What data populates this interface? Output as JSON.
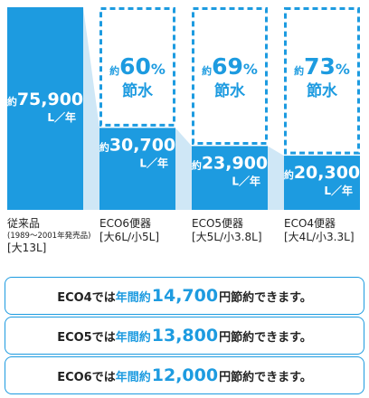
{
  "colors": {
    "accent": "#1d9be0",
    "connector": "#cfe7f6",
    "text": "#222222",
    "white": "#ffffff"
  },
  "chart_data": {
    "type": "bar",
    "unit_label": "L／年",
    "value_prefix": "約",
    "categories": [
      {
        "name": "従来品",
        "sub": "(1989～2001年発売品)",
        "spec": "[大13L]",
        "value": 75900,
        "value_label": "75,900",
        "saving_pct": null
      },
      {
        "name": "ECO6便器",
        "sub": "",
        "spec": "[大6L/小5L]",
        "value": 30700,
        "value_label": "30,700",
        "saving_pct": 60
      },
      {
        "name": "ECO5便器",
        "sub": "",
        "spec": "[大5L/小3.8L]",
        "value": 23900,
        "value_label": "23,900",
        "saving_pct": 69
      },
      {
        "name": "ECO4便器",
        "sub": "",
        "spec": "[大4L/小3.3L]",
        "value": 20300,
        "value_label": "20,300",
        "saving_pct": 73
      }
    ],
    "saving_prefix": "約",
    "saving_suffix": "節水",
    "percent_sign": "%"
  },
  "savings": [
    {
      "pre": "ECO4では",
      "yr": "年間約",
      "amount": "14,700",
      "post": "円節約できます。"
    },
    {
      "pre": "ECO5では",
      "yr": "年間約",
      "amount": "13,800",
      "post": "円節約できます。"
    },
    {
      "pre": "ECO6では",
      "yr": "年間約",
      "amount": "12,000",
      "post": "円節約できます。"
    }
  ]
}
